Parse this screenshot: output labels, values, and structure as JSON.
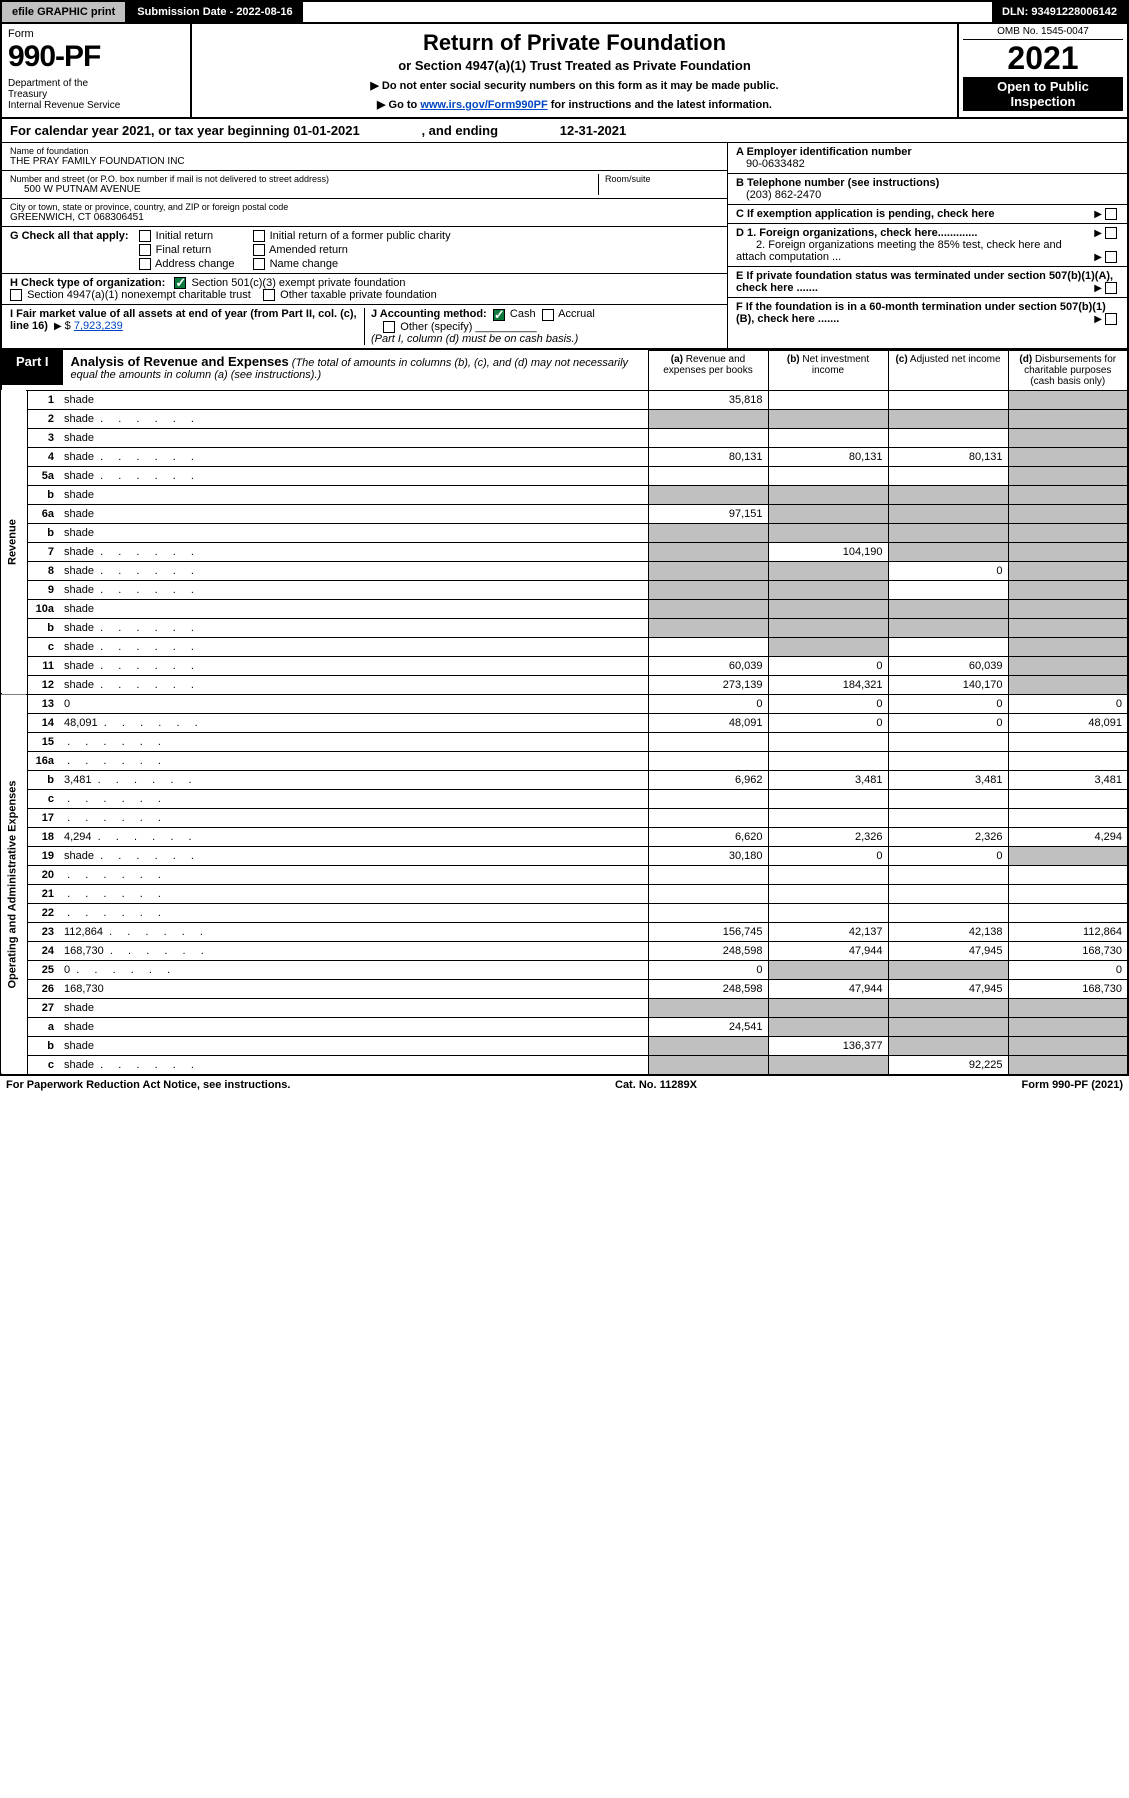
{
  "topbar": {
    "efile": "efile GRAPHIC print",
    "submission": "Submission Date - 2022-08-16",
    "dln": "DLN: 93491228006142"
  },
  "header": {
    "form_label": "Form",
    "form_number": "990-PF",
    "dept": "Department of the Treasury\nInternal Revenue Service",
    "title": "Return of Private Foundation",
    "subtitle": "or Section 4947(a)(1) Trust Treated as Private Foundation",
    "note1": "▶ Do not enter social security numbers on this form as it may be made public.",
    "note2_pre": "▶ Go to ",
    "note2_link": "www.irs.gov/Form990PF",
    "note2_post": " for instructions and the latest information.",
    "omb": "OMB No. 1545-0047",
    "year": "2021",
    "open": "Open to Public Inspection"
  },
  "cal_year": {
    "pre": "For calendar year 2021, or tax year beginning ",
    "begin": "01-01-2021",
    "mid": " , and ending ",
    "end": "12-31-2021"
  },
  "name": {
    "label": "Name of foundation",
    "value": "THE PRAY FAMILY FOUNDATION INC"
  },
  "addr": {
    "label": "Number and street (or P.O. box number if mail is not delivered to street address)",
    "value": "500 W PUTNAM AVENUE",
    "room_label": "Room/suite"
  },
  "city": {
    "label": "City or town, state or province, country, and ZIP or foreign postal code",
    "value": "GREENWICH, CT 068306451"
  },
  "ein": {
    "label": "A Employer identification number",
    "value": "90-0633482"
  },
  "phone": {
    "label": "B Telephone number (see instructions)",
    "value": "(203) 862-2470"
  },
  "boxC": "C If exemption application is pending, check here",
  "boxG": {
    "label": "G Check all that apply:",
    "opts": [
      "Initial return",
      "Final return",
      "Address change",
      "Initial return of a former public charity",
      "Amended return",
      "Name change"
    ]
  },
  "boxD": {
    "d1": "D 1. Foreign organizations, check here.............",
    "d2": "2. Foreign organizations meeting the 85% test, check here and attach computation ..."
  },
  "boxH": {
    "label": "H Check type of organization:",
    "o1": "Section 501(c)(3) exempt private foundation",
    "o2": "Section 4947(a)(1) nonexempt charitable trust",
    "o3": "Other taxable private foundation"
  },
  "boxE": "E If private foundation status was terminated under section 507(b)(1)(A), check here .......",
  "boxI": {
    "label": "I Fair market value of all assets at end of year (from Part II, col. (c), line 16)",
    "value": "7,923,239"
  },
  "boxJ": {
    "label": "J Accounting method:",
    "o1": "Cash",
    "o2": "Accrual",
    "o3": "Other (specify)",
    "note": "(Part I, column (d) must be on cash basis.)"
  },
  "boxF": "F If the foundation is in a 60-month termination under section 507(b)(1)(B), check here .......",
  "part1": {
    "tag": "Part I",
    "title": "Analysis of Revenue and Expenses",
    "note": "(The total of amounts in columns (b), (c), and (d) may not necessarily equal the amounts in column (a) (see instructions).)",
    "cols": {
      "a": "(a) Revenue and expenses per books",
      "b": "(b) Net investment income",
      "c": "(c) Adjusted net income",
      "d": "(d) Disbursements for charitable purposes (cash basis only)"
    }
  },
  "sections": {
    "revenue": "Revenue",
    "expenses": "Operating and Administrative Expenses"
  },
  "rows": [
    {
      "n": "1",
      "d": "shade",
      "a": "35,818",
      "b": "",
      "c": ""
    },
    {
      "n": "2",
      "d": "shade",
      "dots": true,
      "a": "shade",
      "b": "shade",
      "c": "shade"
    },
    {
      "n": "3",
      "d": "shade",
      "a": "",
      "b": "",
      "c": ""
    },
    {
      "n": "4",
      "d": "shade",
      "dots": true,
      "a": "80,131",
      "b": "80,131",
      "c": "80,131"
    },
    {
      "n": "5a",
      "d": "shade",
      "dots": true,
      "a": "",
      "b": "",
      "c": ""
    },
    {
      "n": "b",
      "d": "shade",
      "a": "shade",
      "b": "shade",
      "c": "shade"
    },
    {
      "n": "6a",
      "d": "shade",
      "a": "97,151",
      "b": "shade",
      "c": "shade"
    },
    {
      "n": "b",
      "d": "shade",
      "a": "shade",
      "b": "shade",
      "c": "shade"
    },
    {
      "n": "7",
      "d": "shade",
      "dots": true,
      "a": "shade",
      "b": "104,190",
      "c": "shade"
    },
    {
      "n": "8",
      "d": "shade",
      "dots": true,
      "a": "shade",
      "b": "shade",
      "c": "0"
    },
    {
      "n": "9",
      "d": "shade",
      "dots": true,
      "a": "shade",
      "b": "shade",
      "c": ""
    },
    {
      "n": "10a",
      "d": "shade",
      "a": "shade",
      "b": "shade",
      "c": "shade"
    },
    {
      "n": "b",
      "d": "shade",
      "dots": true,
      "a": "shade",
      "b": "shade",
      "c": "shade"
    },
    {
      "n": "c",
      "d": "shade",
      "dots": true,
      "a": "",
      "b": "shade",
      "c": ""
    },
    {
      "n": "11",
      "d": "shade",
      "dots": true,
      "a": "60,039",
      "b": "0",
      "c": "60,039"
    },
    {
      "n": "12",
      "d": "shade",
      "dots": true,
      "a": "273,139",
      "b": "184,321",
      "c": "140,170"
    }
  ],
  "exp_rows": [
    {
      "n": "13",
      "d": "0",
      "a": "0",
      "b": "0",
      "c": "0"
    },
    {
      "n": "14",
      "d": "48,091",
      "dots": true,
      "a": "48,091",
      "b": "0",
      "c": "0"
    },
    {
      "n": "15",
      "d": "",
      "dots": true,
      "a": "",
      "b": "",
      "c": ""
    },
    {
      "n": "16a",
      "d": "",
      "dots": true,
      "a": "",
      "b": "",
      "c": ""
    },
    {
      "n": "b",
      "d": "3,481",
      "dots": true,
      "a": "6,962",
      "b": "3,481",
      "c": "3,481"
    },
    {
      "n": "c",
      "d": "",
      "dots": true,
      "a": "",
      "b": "",
      "c": ""
    },
    {
      "n": "17",
      "d": "",
      "dots": true,
      "a": "",
      "b": "",
      "c": ""
    },
    {
      "n": "18",
      "d": "4,294",
      "dots": true,
      "a": "6,620",
      "b": "2,326",
      "c": "2,326"
    },
    {
      "n": "19",
      "d": "shade",
      "dots": true,
      "a": "30,180",
      "b": "0",
      "c": "0"
    },
    {
      "n": "20",
      "d": "",
      "dots": true,
      "a": "",
      "b": "",
      "c": ""
    },
    {
      "n": "21",
      "d": "",
      "dots": true,
      "a": "",
      "b": "",
      "c": ""
    },
    {
      "n": "22",
      "d": "",
      "dots": true,
      "a": "",
      "b": "",
      "c": ""
    },
    {
      "n": "23",
      "d": "112,864",
      "dots": true,
      "a": "156,745",
      "b": "42,137",
      "c": "42,138"
    },
    {
      "n": "24",
      "d": "168,730",
      "dots": true,
      "a": "248,598",
      "b": "47,944",
      "c": "47,945"
    },
    {
      "n": "25",
      "d": "0",
      "dots": true,
      "a": "0",
      "b": "shade",
      "c": "shade"
    },
    {
      "n": "26",
      "d": "168,730",
      "a": "248,598",
      "b": "47,944",
      "c": "47,945"
    },
    {
      "n": "27",
      "d": "shade",
      "a": "shade",
      "b": "shade",
      "c": "shade"
    },
    {
      "n": "a",
      "d": "shade",
      "a": "24,541",
      "b": "shade",
      "c": "shade"
    },
    {
      "n": "b",
      "d": "shade",
      "a": "shade",
      "b": "136,377",
      "c": "shade"
    },
    {
      "n": "c",
      "d": "shade",
      "dots": true,
      "a": "shade",
      "b": "shade",
      "c": "92,225"
    }
  ],
  "footer": {
    "left": "For Paperwork Reduction Act Notice, see instructions.",
    "mid": "Cat. No. 11289X",
    "right": "Form 990-PF (2021)"
  }
}
